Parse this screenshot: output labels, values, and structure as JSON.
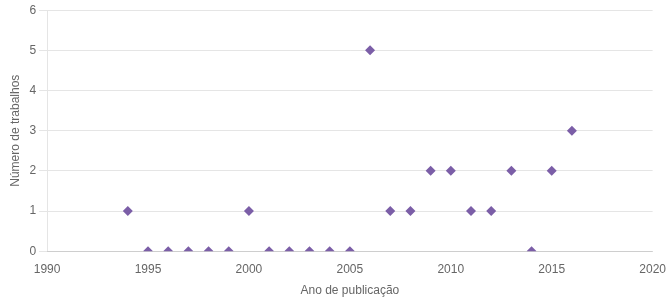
{
  "chart_data": {
    "type": "scatter",
    "x": [
      1994,
      1995,
      1996,
      1997,
      1998,
      1999,
      2000,
      2001,
      2002,
      2003,
      2004,
      2005,
      2006,
      2007,
      2008,
      2009,
      2010,
      2011,
      2012,
      2013,
      2014,
      2015,
      2016
    ],
    "values": [
      1,
      0,
      0,
      0,
      0,
      0,
      1,
      0,
      0,
      0,
      0,
      0,
      5,
      1,
      1,
      2,
      2,
      1,
      1,
      2,
      0,
      2,
      3
    ],
    "color": "#7B5EA7",
    "marker": "diamond",
    "xlabel": "Ano de publicação",
    "ylabel": "Número de trabalhos",
    "xlim": [
      1990,
      2020
    ],
    "ylim": [
      0,
      6
    ],
    "xticks": [
      1990,
      1995,
      2000,
      2005,
      2010,
      2015,
      2020
    ],
    "yticks": [
      0,
      1,
      2,
      3,
      4,
      5,
      6
    ],
    "grid": "y"
  }
}
